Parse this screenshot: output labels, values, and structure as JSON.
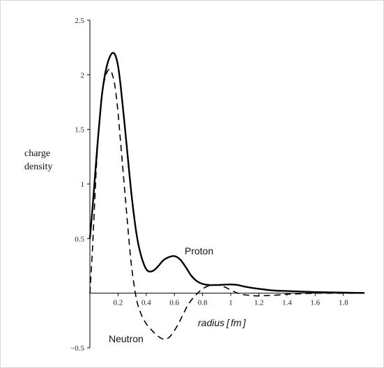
{
  "chart_data": {
    "type": "line",
    "ylabel": [
      "charge",
      "density"
    ],
    "xlabel_main": "radius",
    "xlabel_unit": "fm",
    "xlim": [
      0,
      1.95
    ],
    "ylim": [
      -0.5,
      2.5
    ],
    "x_ticks": [
      0.2,
      0.4,
      0.6,
      0.8,
      1,
      1.2,
      1.4,
      1.6,
      1.8
    ],
    "x_tick_labels": [
      "0.2",
      "0.4",
      "0.6",
      "0.8",
      "1",
      "1.2",
      "1.4",
      "1.6",
      "1.8"
    ],
    "y_ticks": [
      -0.5,
      0.5,
      1,
      1.5,
      2,
      2.5
    ],
    "y_tick_labels": [
      "−0.5",
      "0.5",
      "1",
      "1.5",
      "2",
      "2.5"
    ],
    "annotations": [
      "Proton",
      "Neutron"
    ],
    "series": [
      {
        "name": "Proton",
        "style": "solid",
        "color": "#000000",
        "x": [
          0,
          0.02,
          0.05,
          0.08,
          0.1,
          0.12,
          0.14,
          0.16,
          0.18,
          0.2,
          0.22,
          0.25,
          0.28,
          0.3,
          0.33,
          0.36,
          0.4,
          0.44,
          0.48,
          0.52,
          0.56,
          0.6,
          0.64,
          0.68,
          0.72,
          0.76,
          0.8,
          0.85,
          0.9,
          0.95,
          1.0,
          1.05,
          1.1,
          1.2,
          1.3,
          1.4,
          1.5,
          1.6,
          1.7,
          1.8,
          1.9,
          1.95
        ],
        "y": [
          0.5,
          0.8,
          1.3,
          1.75,
          1.95,
          2.08,
          2.16,
          2.2,
          2.18,
          2.08,
          1.88,
          1.5,
          1.1,
          0.85,
          0.55,
          0.36,
          0.22,
          0.2,
          0.24,
          0.3,
          0.33,
          0.34,
          0.31,
          0.24,
          0.16,
          0.11,
          0.085,
          0.075,
          0.075,
          0.078,
          0.08,
          0.075,
          0.06,
          0.04,
          0.025,
          0.02,
          0.015,
          0.01,
          0.008,
          0.005,
          0.003,
          0.002
        ]
      },
      {
        "name": "Neutron",
        "style": "dashed",
        "color": "#000000",
        "x": [
          0,
          0.02,
          0.05,
          0.08,
          0.1,
          0.12,
          0.14,
          0.16,
          0.18,
          0.2,
          0.22,
          0.25,
          0.28,
          0.3,
          0.33,
          0.36,
          0.4,
          0.44,
          0.48,
          0.52,
          0.55,
          0.58,
          0.62,
          0.66,
          0.7,
          0.75,
          0.8,
          0.85,
          0.9,
          0.95,
          1.0,
          1.05,
          1.1,
          1.15,
          1.2,
          1.25,
          1.3,
          1.35,
          1.4,
          1.5,
          1.6,
          1.7,
          1.8,
          1.9,
          1.95
        ],
        "y": [
          0.0,
          0.45,
          1.25,
          1.75,
          1.93,
          2.02,
          2.05,
          2.0,
          1.88,
          1.65,
          1.35,
          0.9,
          0.45,
          0.2,
          -0.05,
          -0.18,
          -0.28,
          -0.34,
          -0.39,
          -0.42,
          -0.415,
          -0.38,
          -0.3,
          -0.2,
          -0.1,
          -0.02,
          0.04,
          0.07,
          0.075,
          0.06,
          0.03,
          0.0,
          -0.015,
          -0.022,
          -0.025,
          -0.022,
          -0.02,
          -0.015,
          -0.01,
          -0.005,
          0.0,
          0.0,
          0.0,
          0.0,
          0.0
        ]
      }
    ]
  }
}
